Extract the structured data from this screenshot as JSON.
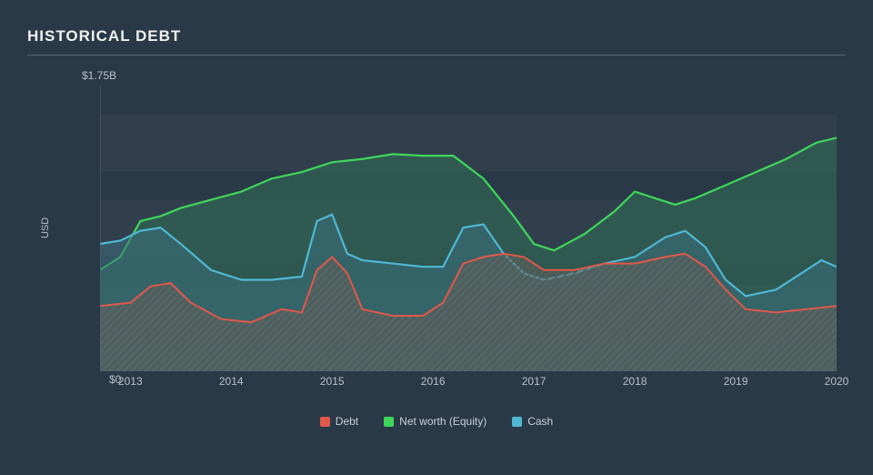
{
  "title": "HISTORICAL DEBT",
  "chart": {
    "type": "area",
    "background_color": "#2a3947",
    "grid_band_color": "#313f4d",
    "axis_color": "#5a6570",
    "label_color": "#b8c0c8",
    "title_color": "#f0f0f0",
    "title_fontsize": 17,
    "label_fontsize": 12,
    "y_label": "USD",
    "y_top_label": "$1.75B",
    "y_bot_label": "$0",
    "ylim": [
      0,
      1.75
    ],
    "x_years": [
      2013,
      2014,
      2015,
      2016,
      2017,
      2018,
      2019,
      2020
    ],
    "x_range": [
      2012.7,
      2020.0
    ],
    "series": {
      "net_worth": {
        "label": "Net worth (Equity)",
        "stroke": "#3fd65a",
        "fill": "#2f7156",
        "fill_opacity": 0.55,
        "stroke_width": 2.2,
        "points": [
          [
            2012.7,
            0.62
          ],
          [
            2012.9,
            0.7
          ],
          [
            2013.1,
            0.92
          ],
          [
            2013.3,
            0.95
          ],
          [
            2013.5,
            1.0
          ],
          [
            2013.8,
            1.05
          ],
          [
            2014.1,
            1.1
          ],
          [
            2014.4,
            1.18
          ],
          [
            2014.7,
            1.22
          ],
          [
            2015.0,
            1.28
          ],
          [
            2015.3,
            1.3
          ],
          [
            2015.6,
            1.33
          ],
          [
            2015.9,
            1.32
          ],
          [
            2016.2,
            1.32
          ],
          [
            2016.5,
            1.18
          ],
          [
            2016.8,
            0.95
          ],
          [
            2017.0,
            0.78
          ],
          [
            2017.2,
            0.74
          ],
          [
            2017.5,
            0.84
          ],
          [
            2017.8,
            0.98
          ],
          [
            2018.0,
            1.1
          ],
          [
            2018.2,
            1.06
          ],
          [
            2018.4,
            1.02
          ],
          [
            2018.6,
            1.06
          ],
          [
            2018.9,
            1.14
          ],
          [
            2019.2,
            1.22
          ],
          [
            2019.5,
            1.3
          ],
          [
            2019.8,
            1.4
          ],
          [
            2020.0,
            1.43
          ]
        ]
      },
      "cash": {
        "label": "Cash",
        "stroke": "#4fb8d4",
        "fill": "#3a6d7e",
        "fill_opacity": 0.55,
        "stroke_width": 2.2,
        "points": [
          [
            2012.7,
            0.78
          ],
          [
            2012.9,
            0.8
          ],
          [
            2013.1,
            0.86
          ],
          [
            2013.3,
            0.88
          ],
          [
            2013.5,
            0.78
          ],
          [
            2013.8,
            0.62
          ],
          [
            2014.1,
            0.56
          ],
          [
            2014.4,
            0.56
          ],
          [
            2014.7,
            0.58
          ],
          [
            2014.85,
            0.92
          ],
          [
            2015.0,
            0.96
          ],
          [
            2015.15,
            0.72
          ],
          [
            2015.3,
            0.68
          ],
          [
            2015.6,
            0.66
          ],
          [
            2015.9,
            0.64
          ],
          [
            2016.1,
            0.64
          ],
          [
            2016.3,
            0.88
          ],
          [
            2016.5,
            0.9
          ],
          [
            2016.7,
            0.72
          ],
          [
            2016.9,
            0.6
          ],
          [
            2017.1,
            0.56
          ],
          [
            2017.4,
            0.6
          ],
          [
            2017.7,
            0.66
          ],
          [
            2018.0,
            0.7
          ],
          [
            2018.3,
            0.82
          ],
          [
            2018.5,
            0.86
          ],
          [
            2018.7,
            0.76
          ],
          [
            2018.9,
            0.56
          ],
          [
            2019.1,
            0.46
          ],
          [
            2019.4,
            0.5
          ],
          [
            2019.7,
            0.62
          ],
          [
            2019.85,
            0.68
          ],
          [
            2020.0,
            0.64
          ]
        ]
      },
      "debt": {
        "label": "Debt",
        "stroke": "#e0584a",
        "fill": "#6a655c",
        "fill_opacity": 0.55,
        "hatch": true,
        "hatch_color": "#4a5258",
        "stroke_width": 2.0,
        "points": [
          [
            2012.7,
            0.4
          ],
          [
            2013.0,
            0.42
          ],
          [
            2013.2,
            0.52
          ],
          [
            2013.4,
            0.54
          ],
          [
            2013.6,
            0.42
          ],
          [
            2013.9,
            0.32
          ],
          [
            2014.2,
            0.3
          ],
          [
            2014.5,
            0.38
          ],
          [
            2014.7,
            0.36
          ],
          [
            2014.85,
            0.62
          ],
          [
            2015.0,
            0.7
          ],
          [
            2015.15,
            0.6
          ],
          [
            2015.3,
            0.38
          ],
          [
            2015.6,
            0.34
          ],
          [
            2015.9,
            0.34
          ],
          [
            2016.1,
            0.42
          ],
          [
            2016.3,
            0.66
          ],
          [
            2016.5,
            0.7
          ],
          [
            2016.7,
            0.72
          ],
          [
            2016.9,
            0.7
          ],
          [
            2017.1,
            0.62
          ],
          [
            2017.4,
            0.62
          ],
          [
            2017.7,
            0.66
          ],
          [
            2018.0,
            0.66
          ],
          [
            2018.3,
            0.7
          ],
          [
            2018.5,
            0.72
          ],
          [
            2018.7,
            0.64
          ],
          [
            2018.9,
            0.5
          ],
          [
            2019.1,
            0.38
          ],
          [
            2019.4,
            0.36
          ],
          [
            2019.7,
            0.38
          ],
          [
            2020.0,
            0.4
          ]
        ]
      }
    },
    "legend_order": [
      "debt",
      "net_worth",
      "cash"
    ]
  }
}
